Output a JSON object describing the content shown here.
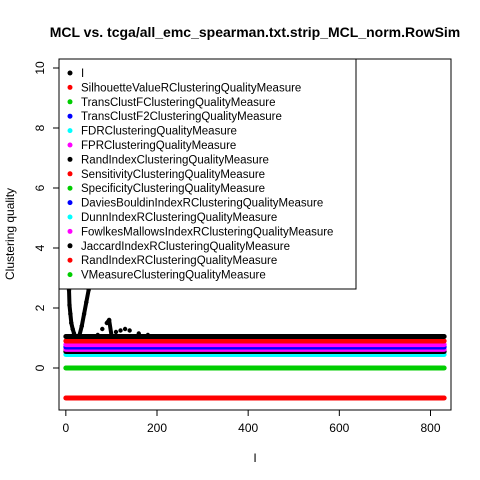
{
  "chart_data": {
    "type": "scatter",
    "title": "MCL vs. tcga/all_emc_spearman.txt.strip_MCL_norm.RowSim",
    "xlabel": "I",
    "ylabel": "Clustering quality",
    "xlim": [
      -15,
      845
    ],
    "ylim": [
      -1.4,
      10.3
    ],
    "x_ticks": [
      0,
      200,
      400,
      600,
      800
    ],
    "y_ticks": [
      0,
      2,
      4,
      6,
      8,
      10
    ],
    "x_max": 830,
    "legend_position": "top-left",
    "legend": [
      {
        "label": "I",
        "color": "#000000"
      },
      {
        "label": "SilhouetteValueRClusteringQualityMeasure",
        "color": "#ff0000"
      },
      {
        "label": "TransClustFClusteringQualityMeasure",
        "color": "#00cd00"
      },
      {
        "label": "TransClustF2ClusteringQualityMeasure",
        "color": "#0000ff"
      },
      {
        "label": "FDRClusteringQualityMeasure",
        "color": "#00ffff"
      },
      {
        "label": "FPRClusteringQualityMeasure",
        "color": "#ff00ff"
      },
      {
        "label": "RandIndexClusteringQualityMeasure",
        "color": "#000000"
      },
      {
        "label": "SensitivityClusteringQualityMeasure",
        "color": "#ff0000"
      },
      {
        "label": "SpecificityClusteringQualityMeasure",
        "color": "#00cd00"
      },
      {
        "label": "DaviesBouldinIndexRClusteringQualityMeasure",
        "color": "#0000ff"
      },
      {
        "label": "DunnIndexRClusteringQualityMeasure",
        "color": "#00ffff"
      },
      {
        "label": "FowlkesMallowsIndexRClusteringQualityMeasure",
        "color": "#ff00ff"
      },
      {
        "label": "JaccardIndexRClusteringQualityMeasure",
        "color": "#000000"
      },
      {
        "label": "RandIndexRClusteringQualityMeasure",
        "color": "#ff0000"
      },
      {
        "label": "VMeasureClusteringQualityMeasure",
        "color": "#00cd00"
      }
    ],
    "series": [
      {
        "color": "#ff0000",
        "values": [
          [
            0,
            -1.0
          ],
          [
            830,
            -1.0
          ]
        ]
      },
      {
        "color": "#00cd00",
        "values": [
          [
            0,
            0.0
          ],
          [
            830,
            0.0
          ]
        ]
      },
      {
        "color": "#00ffff",
        "values": [
          [
            0,
            0.45
          ],
          [
            830,
            0.45
          ]
        ]
      },
      {
        "color": "#000000",
        "values": [
          [
            0,
            0.55
          ],
          [
            830,
            0.55
          ]
        ]
      },
      {
        "color": "#ff00ff",
        "values": [
          [
            0,
            0.62
          ],
          [
            830,
            0.62
          ]
        ]
      },
      {
        "color": "#0000ff",
        "values": [
          [
            0,
            0.7
          ],
          [
            830,
            0.7
          ]
        ]
      },
      {
        "color": "#ff00ff",
        "values": [
          [
            0,
            0.78
          ],
          [
            830,
            0.78
          ]
        ]
      },
      {
        "color": "#ff0000",
        "values": [
          [
            0,
            0.9
          ],
          [
            830,
            0.9
          ]
        ]
      },
      {
        "color": "#000000",
        "values": [
          [
            0,
            1.05
          ],
          [
            830,
            1.05
          ]
        ]
      },
      {
        "color": "#000000",
        "values": [
          [
            1,
            9.8
          ],
          [
            2,
            8.6
          ],
          [
            3,
            7.0
          ],
          [
            4,
            5.6
          ],
          [
            5,
            4.4
          ],
          [
            6,
            3.4
          ],
          [
            7,
            2.6
          ],
          [
            8,
            2.1
          ],
          [
            10,
            1.8
          ],
          [
            12,
            1.5
          ],
          [
            15,
            1.3
          ],
          [
            18,
            1.15
          ],
          [
            30,
            1.1
          ],
          [
            35,
            1.4
          ],
          [
            40,
            1.8
          ],
          [
            45,
            2.2
          ],
          [
            50,
            2.6
          ],
          [
            70,
            1.1
          ],
          [
            80,
            1.3
          ],
          [
            90,
            1.5
          ],
          [
            95,
            1.6
          ],
          [
            100,
            1.1
          ],
          [
            110,
            1.2
          ],
          [
            120,
            1.25
          ],
          [
            130,
            1.3
          ],
          [
            140,
            1.25
          ],
          [
            160,
            1.15
          ],
          [
            180,
            1.1
          ]
        ]
      }
    ]
  }
}
